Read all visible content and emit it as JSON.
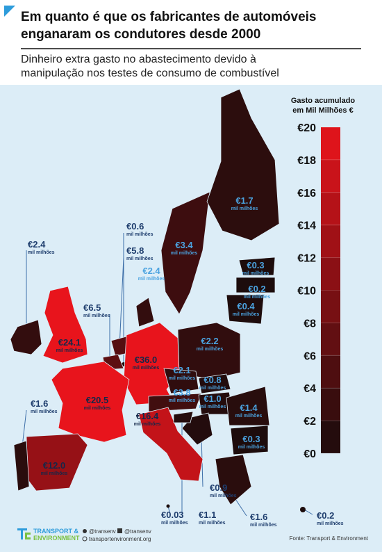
{
  "header": {
    "title_line1": "Em quanto é que os fabricantes de automóveis",
    "title_line2": "enganaram os condutores desde 2000",
    "subtitle_line1": "Dinheiro extra gasto no abastecimento devido à",
    "subtitle_line2": "manipulação nos testes de consumo de combustível"
  },
  "legend": {
    "title_line1": "Gasto acumulado",
    "title_line2": "em Mil Milhões €",
    "range": [
      0,
      20
    ],
    "color_low": "#1a0c0c",
    "color_high": "#e8141c",
    "ticks": [
      {
        "value": 0,
        "label": "€0"
      },
      {
        "value": 2,
        "label": "€2"
      },
      {
        "value": 4,
        "label": "€4"
      },
      {
        "value": 6,
        "label": "€6"
      },
      {
        "value": 8,
        "label": "€8"
      },
      {
        "value": 10,
        "label": "€10"
      },
      {
        "value": 12,
        "label": "€12"
      },
      {
        "value": 14,
        "label": "€14"
      },
      {
        "value": 16,
        "label": "€16"
      },
      {
        "value": 18,
        "label": "€18"
      },
      {
        "value": 20,
        "label": "€20"
      }
    ]
  },
  "unit_label": "mil milhões",
  "regions": [
    {
      "label": "€2.4",
      "value": 2.4
    },
    {
      "label": "€0.6",
      "value": 0.6
    },
    {
      "label": "€5.8",
      "value": 5.8
    },
    {
      "label": "€2.4",
      "value": 2.4
    },
    {
      "label": "€6.5",
      "value": 6.5
    },
    {
      "label": "€24.1",
      "value": 24.1
    },
    {
      "label": "€36.0",
      "value": 36.0
    },
    {
      "label": "€3.4",
      "value": 3.4
    },
    {
      "label": "€1.7",
      "value": 1.7
    },
    {
      "label": "€0.3",
      "value": 0.3
    },
    {
      "label": "€0.2",
      "value": 0.2
    },
    {
      "label": "€0.4",
      "value": 0.4
    },
    {
      "label": "€2.2",
      "value": 2.2
    },
    {
      "label": "€2.1",
      "value": 2.1
    },
    {
      "label": "€0.8",
      "value": 0.8
    },
    {
      "label": "€3.8",
      "value": 3.8
    },
    {
      "label": "€1.0",
      "value": 1.0
    },
    {
      "label": "€20.5",
      "value": 20.5
    },
    {
      "label": "€1.4",
      "value": 1.4
    },
    {
      "label": "€16.4",
      "value": 16.4
    },
    {
      "label": "€0.3",
      "value": 0.3
    },
    {
      "label": "€12.0",
      "value": 12.0
    },
    {
      "label": "€1.6",
      "value": 1.6
    },
    {
      "label": "€0.9",
      "value": 0.9
    },
    {
      "label": "€0.03",
      "value": 0.03
    },
    {
      "label": "€1.1",
      "value": 1.1
    },
    {
      "label": "€1.6",
      "value": 1.6
    },
    {
      "label": "€0.2",
      "value": 0.2
    }
  ],
  "footer": {
    "brand_line1": "TRANSPORT &",
    "brand_line2": "ENVIRONMENT",
    "twitter": "@transenv",
    "facebook": "@transenv",
    "website": "transportenvironment.org",
    "source": "Fonte: Transport & Environment"
  }
}
